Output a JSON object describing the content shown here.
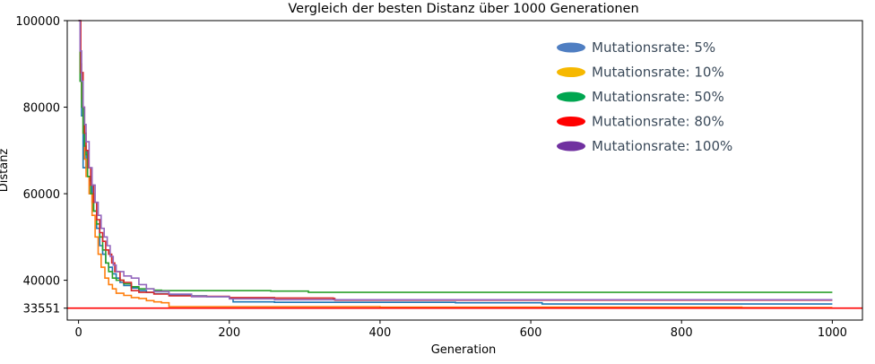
{
  "chart_data": {
    "type": "line",
    "title": "Vergleich der besten Distanz über 1000 Generationen",
    "xlabel": "Generation",
    "ylabel": "Distanz",
    "xlim": [
      -15,
      1040
    ],
    "ylim": [
      30800,
      100000
    ],
    "x_ticks": [
      0,
      200,
      400,
      600,
      800,
      1000
    ],
    "y_ticks": [
      33551,
      40000,
      60000,
      80000,
      100000
    ],
    "grid": false,
    "legend_position": "top-right",
    "reference_line": {
      "y": 33551,
      "color": "#ff0000"
    },
    "series": [
      {
        "name": "Mutationsrate: 5%",
        "color": "#1f77b4",
        "legend_color": "#4f7ec2",
        "points": [
          [
            0,
            100000
          ],
          [
            2,
            88000
          ],
          [
            4,
            78000
          ],
          [
            6,
            66000
          ],
          [
            8,
            66000
          ],
          [
            10,
            70000
          ],
          [
            12,
            64000
          ],
          [
            15,
            63000
          ],
          [
            18,
            58000
          ],
          [
            20,
            56000
          ],
          [
            24,
            52000
          ],
          [
            28,
            48000
          ],
          [
            32,
            46000
          ],
          [
            36,
            44000
          ],
          [
            40,
            43000
          ],
          [
            45,
            41500
          ],
          [
            50,
            40500
          ],
          [
            55,
            39500
          ],
          [
            60,
            38800
          ],
          [
            70,
            38200
          ],
          [
            80,
            37600
          ],
          [
            90,
            37200
          ],
          [
            100,
            36900
          ],
          [
            120,
            36600
          ],
          [
            150,
            36400
          ],
          [
            170,
            36200
          ],
          [
            200,
            35900
          ],
          [
            205,
            35000
          ],
          [
            260,
            34900
          ],
          [
            500,
            34800
          ],
          [
            615,
            34500
          ],
          [
            1000,
            34500
          ]
        ]
      },
      {
        "name": "Mutationsrate: 10%",
        "color": "#ff7f0e",
        "legend_color": "#f6b800",
        "points": [
          [
            0,
            100000
          ],
          [
            2,
            90000
          ],
          [
            4,
            82000
          ],
          [
            6,
            74000
          ],
          [
            8,
            68000
          ],
          [
            10,
            64000
          ],
          [
            14,
            60000
          ],
          [
            18,
            55000
          ],
          [
            22,
            50000
          ],
          [
            26,
            46000
          ],
          [
            30,
            43000
          ],
          [
            35,
            40500
          ],
          [
            40,
            39000
          ],
          [
            45,
            38000
          ],
          [
            50,
            37000
          ],
          [
            60,
            36500
          ],
          [
            70,
            36000
          ],
          [
            80,
            35800
          ],
          [
            90,
            35300
          ],
          [
            100,
            35000
          ],
          [
            110,
            34800
          ],
          [
            120,
            33900
          ],
          [
            400,
            33800
          ],
          [
            880,
            33700
          ],
          [
            1000,
            33700
          ]
        ]
      },
      {
        "name": "Mutationsrate: 50%",
        "color": "#2ca02c",
        "legend_color": "#00a650",
        "points": [
          [
            0,
            100000
          ],
          [
            2,
            86000
          ],
          [
            4,
            80000
          ],
          [
            6,
            74000
          ],
          [
            8,
            71000
          ],
          [
            10,
            69000
          ],
          [
            12,
            64000
          ],
          [
            16,
            60000
          ],
          [
            20,
            56000
          ],
          [
            24,
            53000
          ],
          [
            28,
            50000
          ],
          [
            32,
            47000
          ],
          [
            36,
            44000
          ],
          [
            40,
            42000
          ],
          [
            45,
            40500
          ],
          [
            50,
            40000
          ],
          [
            60,
            39200
          ],
          [
            70,
            38500
          ],
          [
            80,
            38000
          ],
          [
            100,
            37700
          ],
          [
            110,
            37600
          ],
          [
            255,
            37500
          ],
          [
            305,
            37200
          ],
          [
            1000,
            37200
          ]
        ]
      },
      {
        "name": "Mutationsrate: 80%",
        "color": "#d62728",
        "legend_color": "#ff0000",
        "points": [
          [
            0,
            100000
          ],
          [
            3,
            88000
          ],
          [
            6,
            80000
          ],
          [
            8,
            74000
          ],
          [
            10,
            70000
          ],
          [
            13,
            66000
          ],
          [
            16,
            62000
          ],
          [
            20,
            58000
          ],
          [
            24,
            54000
          ],
          [
            28,
            51000
          ],
          [
            32,
            49000
          ],
          [
            36,
            47000
          ],
          [
            40,
            46000
          ],
          [
            44,
            44000
          ],
          [
            48,
            42000
          ],
          [
            55,
            40000
          ],
          [
            60,
            39500
          ],
          [
            70,
            37600
          ],
          [
            80,
            37200
          ],
          [
            100,
            36800
          ],
          [
            120,
            36400
          ],
          [
            150,
            36300
          ],
          [
            200,
            36000
          ],
          [
            260,
            35900
          ],
          [
            338,
            35800
          ],
          [
            340,
            35400
          ],
          [
            1000,
            35400
          ]
        ]
      },
      {
        "name": "Mutationsrate: 100%",
        "color": "#9467bd",
        "legend_color": "#7030a0",
        "points": [
          [
            0,
            100000
          ],
          [
            2,
            93000
          ],
          [
            4,
            86000
          ],
          [
            6,
            80000
          ],
          [
            8,
            76000
          ],
          [
            10,
            72000
          ],
          [
            14,
            66000
          ],
          [
            18,
            62000
          ],
          [
            22,
            58000
          ],
          [
            26,
            55000
          ],
          [
            30,
            52000
          ],
          [
            34,
            50000
          ],
          [
            38,
            48000
          ],
          [
            42,
            45500
          ],
          [
            46,
            43500
          ],
          [
            50,
            42000
          ],
          [
            60,
            41000
          ],
          [
            70,
            40500
          ],
          [
            80,
            39000
          ],
          [
            90,
            38000
          ],
          [
            100,
            37400
          ],
          [
            120,
            36800
          ],
          [
            150,
            36200
          ],
          [
            200,
            35700
          ],
          [
            260,
            35500
          ],
          [
            1000,
            35500
          ]
        ]
      }
    ]
  }
}
